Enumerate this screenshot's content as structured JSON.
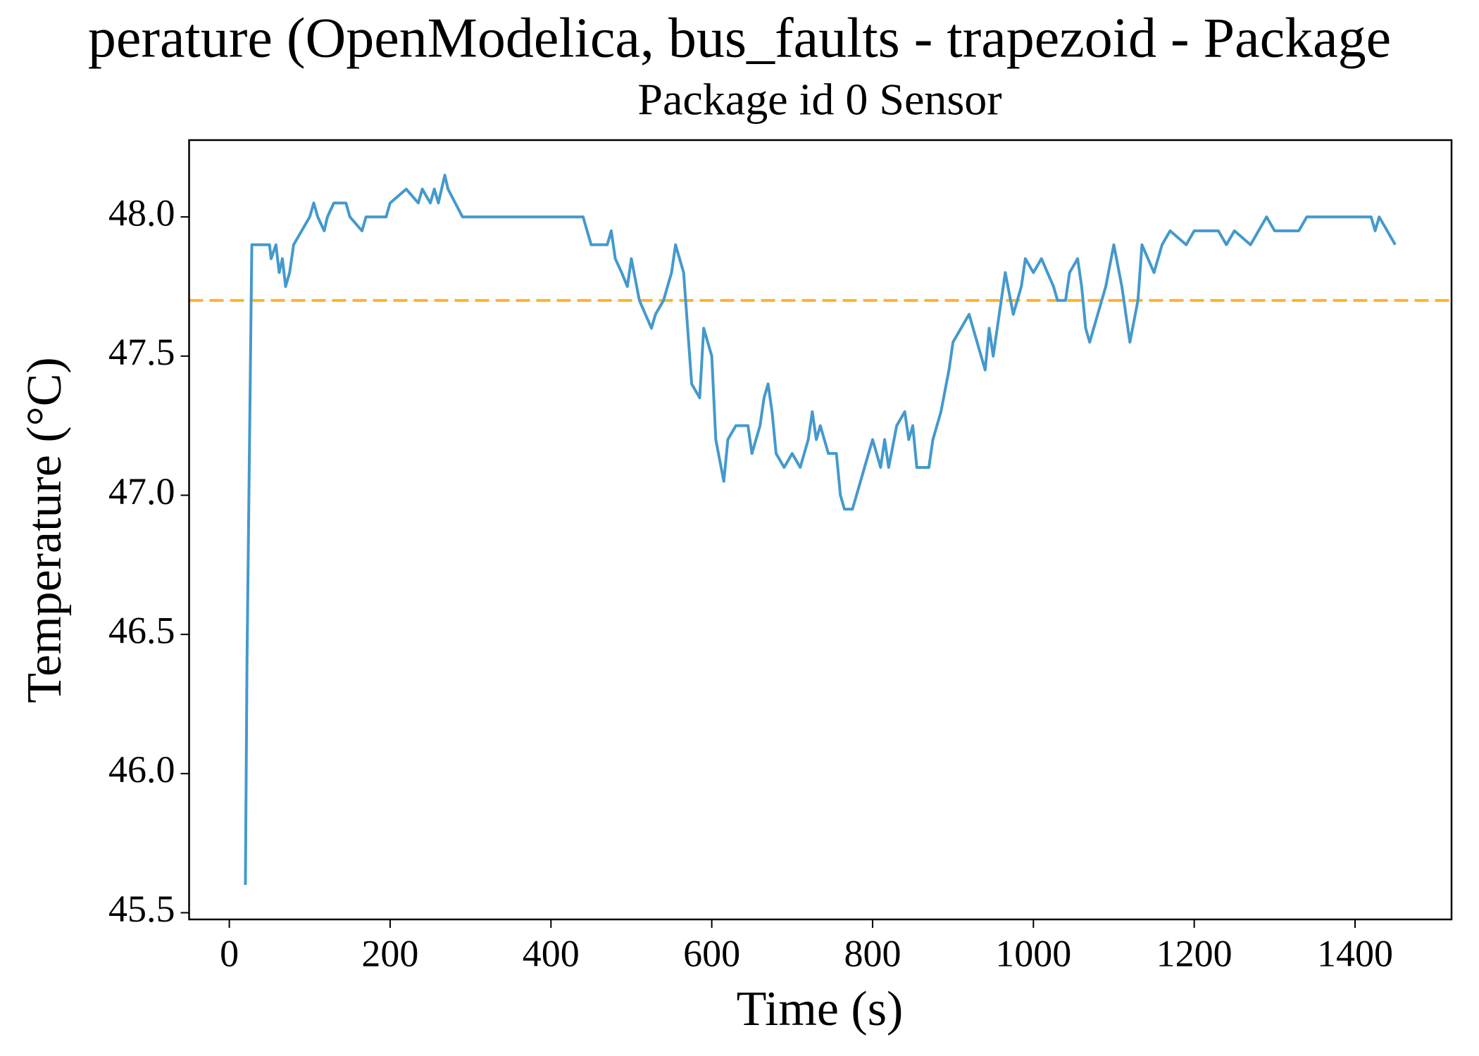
{
  "chart_data": {
    "type": "line",
    "title": "perature (OpenModelica, bus_faults - trapezoid - Package",
    "subtitle": "Package id 0 Sensor",
    "x_label": "Time (s)",
    "y_label": "Temperature (°C)",
    "xlim": [
      -50,
      1520
    ],
    "ylim": [
      45.476,
      48.276
    ],
    "xticks": [
      0,
      200,
      400,
      600,
      800,
      1000,
      1200,
      1400
    ],
    "yticks": [
      45.5,
      {
        "value": 46,
        "label": "46.0"
      },
      46.5,
      {
        "value": 47,
        "label": "47.0"
      },
      47.5,
      {
        "value": 48,
        "label": "48.0"
      }
    ],
    "hline": {
      "value": 47.7,
      "color": "#f9b233",
      "style": "dashed"
    },
    "series": [
      {
        "color": "#4499cc",
        "x": [
          20,
          22,
          28,
          50,
          52,
          58,
          62,
          66,
          70,
          75,
          80,
          90,
          100,
          105,
          110,
          118,
          122,
          130,
          145,
          150,
          165,
          170,
          195,
          200,
          220,
          235,
          240,
          250,
          255,
          260,
          268,
          272,
          290,
          440,
          445,
          450,
          470,
          475,
          480,
          488,
          495,
          500,
          510,
          525,
          530,
          540,
          550,
          555,
          565,
          570,
          575,
          585,
          588,
          590,
          600,
          605,
          615,
          620,
          630,
          645,
          650,
          660,
          665,
          670,
          675,
          680,
          690,
          700,
          710,
          720,
          725,
          730,
          735,
          745,
          755,
          760,
          765,
          775,
          785,
          790,
          800,
          810,
          815,
          820,
          830,
          840,
          845,
          850,
          855,
          870,
          875,
          885,
          895,
          900,
          910,
          920,
          930,
          940,
          945,
          950,
          960,
          965,
          975,
          985,
          990,
          1000,
          1010,
          1025,
          1030,
          1040,
          1045,
          1055,
          1060,
          1065,
          1070,
          1080,
          1090,
          1100,
          1110,
          1120,
          1130,
          1135,
          1150,
          1160,
          1170,
          1190,
          1200,
          1230,
          1240,
          1250,
          1270,
          1280,
          1290,
          1300,
          1330,
          1340,
          1420,
          1425,
          1430,
          1440,
          1450
        ],
        "values": [
          45.6,
          46.4,
          47.9,
          47.9,
          47.85,
          47.9,
          47.8,
          47.85,
          47.75,
          47.8,
          47.9,
          47.95,
          48.0,
          48.05,
          48.0,
          47.95,
          48.0,
          48.05,
          48.05,
          48.0,
          47.95,
          48.0,
          48.0,
          48.05,
          48.1,
          48.05,
          48.1,
          48.05,
          48.1,
          48.05,
          48.15,
          48.1,
          48.0,
          48.0,
          47.95,
          47.9,
          47.9,
          47.95,
          47.85,
          47.8,
          47.75,
          47.85,
          47.7,
          47.6,
          47.65,
          47.7,
          47.8,
          47.9,
          47.8,
          47.6,
          47.4,
          47.35,
          47.5,
          47.6,
          47.5,
          47.2,
          47.05,
          47.2,
          47.25,
          47.25,
          47.15,
          47.25,
          47.35,
          47.4,
          47.3,
          47.15,
          47.1,
          47.15,
          47.1,
          47.2,
          47.3,
          47.2,
          47.25,
          47.15,
          47.15,
          47.0,
          46.95,
          46.95,
          47.05,
          47.1,
          47.2,
          47.1,
          47.2,
          47.1,
          47.25,
          47.3,
          47.2,
          47.25,
          47.1,
          47.1,
          47.2,
          47.3,
          47.45,
          47.55,
          47.6,
          47.65,
          47.55,
          47.45,
          47.6,
          47.5,
          47.7,
          47.8,
          47.65,
          47.75,
          47.85,
          47.8,
          47.85,
          47.75,
          47.7,
          47.7,
          47.8,
          47.85,
          47.75,
          47.6,
          47.55,
          47.65,
          47.75,
          47.9,
          47.75,
          47.55,
          47.7,
          47.9,
          47.8,
          47.9,
          47.95,
          47.9,
          47.95,
          47.95,
          47.9,
          47.95,
          47.9,
          47.95,
          48.0,
          47.95,
          47.95,
          48.0,
          48.0,
          47.95,
          48.0,
          47.95,
          47.9
        ]
      }
    ]
  }
}
